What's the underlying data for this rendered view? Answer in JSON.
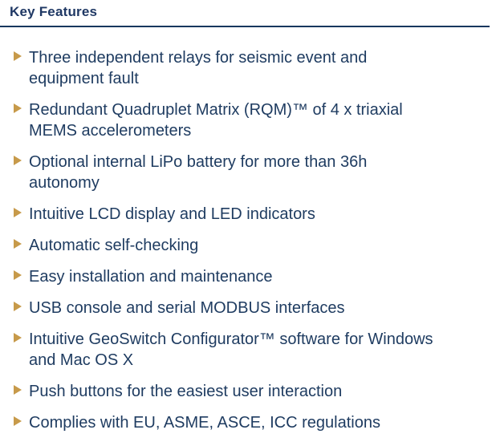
{
  "header": {
    "title": "Key Features",
    "text_color": "#1F3864",
    "rule_color": "#17365D"
  },
  "bullet": {
    "icon": "right-triangle",
    "color": "#C79A4A"
  },
  "body_text_color": "#1F3C61",
  "features": [
    {
      "text": "Three independent relays for seismic event and\nequipment fault"
    },
    {
      "text": "Redundant Quadruplet Matrix (RQM)™ of 4 x triaxial\nMEMS accelerometers"
    },
    {
      "text": "Optional internal LiPo battery for more than 36h\nautonomy"
    },
    {
      "text": "Intuitive LCD display and LED indicators"
    },
    {
      "text": "Automatic self-checking"
    },
    {
      "text": "Easy installation and maintenance"
    },
    {
      "text": "USB console and serial MODBUS interfaces"
    },
    {
      "text": "Intuitive GeoSwitch Configurator™ software for Windows\nand Mac OS X"
    },
    {
      "text": "Push buttons for the easiest user interaction"
    },
    {
      "text": "Complies with EU, ASME, ASCE, ICC regulations"
    }
  ]
}
